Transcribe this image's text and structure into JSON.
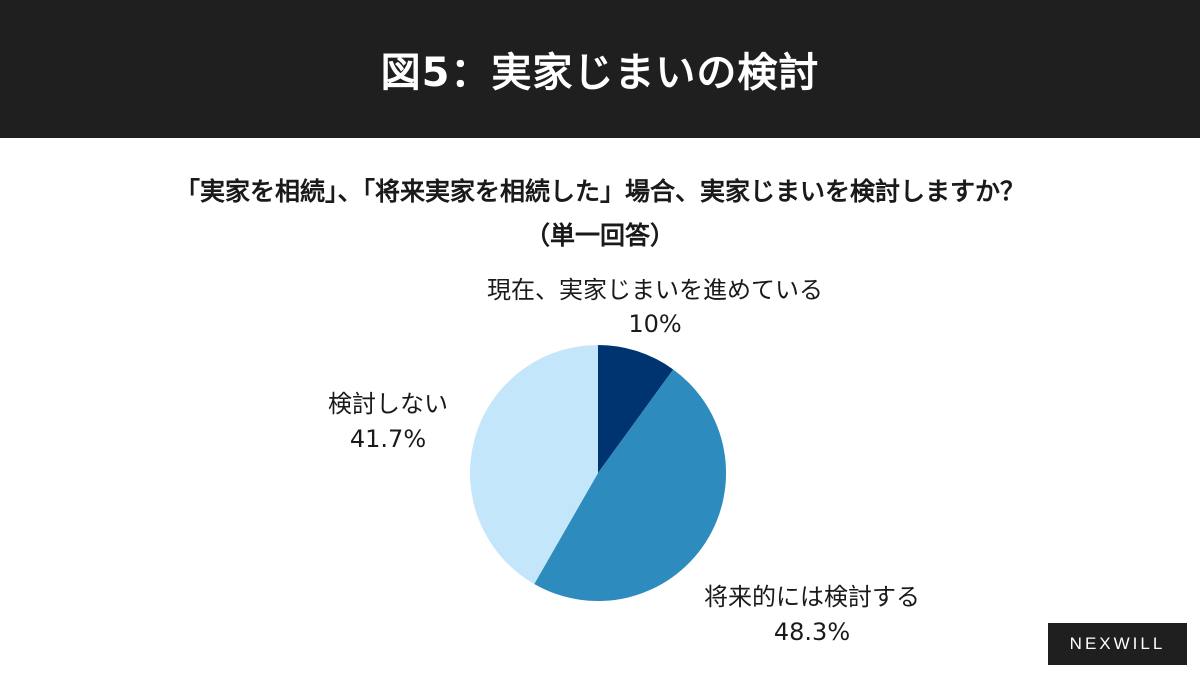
{
  "header": {
    "title": "図5：実家じまいの検討"
  },
  "question": {
    "line1": "「実家を相続」、「将来実家を相続した」場合、実家じまいを検討しますか？",
    "line2": "（単一回答）"
  },
  "chart_data": {
    "type": "pie",
    "start_angle_deg": 0,
    "direction": "clockwise",
    "slices": [
      {
        "label": "現在、実家じまいを進めている",
        "value": 10.0,
        "value_label": "10%",
        "color": "#003470"
      },
      {
        "label": "将来的には検討する",
        "value": 48.3,
        "value_label": "48.3%",
        "color": "#2e8bbd"
      },
      {
        "label": "検討しない",
        "value": 41.7,
        "value_label": "41.7%",
        "color": "#c3e6fa"
      }
    ]
  },
  "logo": {
    "text": "NEXWILL"
  }
}
